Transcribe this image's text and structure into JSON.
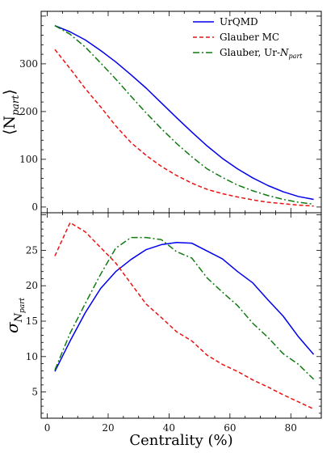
{
  "colors": {
    "urqmd": "#0000ee",
    "glauber": "#ee1111",
    "glauber_ur": "#117a11",
    "axis": "#000000"
  },
  "chart_data": [
    {
      "type": "line",
      "title": "",
      "xlabel": "",
      "ylabel": "⟨N_part⟩",
      "xlim": [
        -2,
        90
      ],
      "ylim": [
        -12,
        410
      ],
      "grid": false,
      "legend": "top-right",
      "yticks": [
        0,
        100,
        200,
        300
      ],
      "series": [
        {
          "name": "UrQMD",
          "style": "solid",
          "x": [
            2.5,
            7.5,
            12.5,
            17.5,
            22.5,
            27.5,
            32.5,
            37.5,
            42.5,
            47.5,
            52.5,
            57.5,
            62.5,
            67.5,
            72.5,
            77.5,
            82.5,
            87.5
          ],
          "y": [
            380,
            367,
            350,
            328,
            304,
            277,
            249,
            218,
            187,
            157,
            128,
            102,
            80,
            61,
            45,
            32,
            22,
            16
          ]
        },
        {
          "name": "Glauber MC",
          "style": "dashed",
          "x": [
            2.5,
            7.5,
            12.5,
            17.5,
            22.5,
            27.5,
            32.5,
            37.5,
            42.5,
            47.5,
            52.5,
            57.5,
            62.5,
            67.5,
            72.5,
            77.5,
            82.5,
            87.5
          ],
          "y": [
            330,
            290,
            248,
            210,
            170,
            135,
            108,
            85,
            66,
            50,
            37,
            28,
            21,
            15,
            10,
            7,
            4,
            2
          ]
        },
        {
          "name": "Glauber, Ur-N_part",
          "style": "dashdot",
          "x": [
            2.5,
            7.5,
            12.5,
            17.5,
            22.5,
            27.5,
            32.5,
            37.5,
            42.5,
            47.5,
            52.5,
            57.5,
            62.5,
            67.5,
            72.5,
            77.5,
            82.5,
            87.5
          ],
          "y": [
            380,
            362,
            335,
            302,
            268,
            232,
            197,
            164,
            133,
            105,
            80,
            62,
            46,
            34,
            24,
            16,
            10,
            6
          ]
        }
      ]
    },
    {
      "type": "line",
      "title": "",
      "xlabel": "Centrality (%)",
      "ylabel": "σ_N_part",
      "xlim": [
        -2,
        90
      ],
      "ylim": [
        1.3,
        30.3
      ],
      "grid": false,
      "xticks": [
        0,
        20,
        40,
        60,
        80
      ],
      "yticks": [
        5,
        10,
        15,
        20,
        25
      ],
      "series": [
        {
          "name": "UrQMD",
          "style": "solid",
          "x": [
            2.5,
            7.5,
            12.5,
            17.5,
            22.5,
            27.5,
            32.5,
            37.5,
            42.5,
            47.5,
            52.5,
            57.5,
            62.5,
            67.5,
            72.5,
            77.5,
            82.5,
            87.5
          ],
          "y": [
            7.9,
            12.2,
            16.2,
            19.6,
            22.0,
            23.7,
            25.1,
            25.8,
            26.1,
            26.0,
            24.9,
            23.8,
            22.0,
            20.4,
            18.0,
            15.7,
            12.8,
            10.3
          ]
        },
        {
          "name": "Glauber MC",
          "style": "dashed",
          "x": [
            2.5,
            7.5,
            12.5,
            17.5,
            22.5,
            27.5,
            32.5,
            37.5,
            42.5,
            47.5,
            52.5,
            57.5,
            62.5,
            67.5,
            72.5,
            77.5,
            82.5,
            87.5
          ],
          "y": [
            24.2,
            28.9,
            27.6,
            25.4,
            23.2,
            20.3,
            17.4,
            15.5,
            13.5,
            12.2,
            10.2,
            8.9,
            7.9,
            6.7,
            5.7,
            4.6,
            3.6,
            2.6
          ]
        },
        {
          "name": "Glauber, Ur-N_part",
          "style": "dashdot",
          "x": [
            2.5,
            7.5,
            12.5,
            17.5,
            22.5,
            27.5,
            32.5,
            37.5,
            42.5,
            47.5,
            52.5,
            57.5,
            62.5,
            67.5,
            72.5,
            77.5,
            82.5,
            87.5
          ],
          "y": [
            8.1,
            13.3,
            17.5,
            21.6,
            25.3,
            26.8,
            26.8,
            26.5,
            24.8,
            23.9,
            21.1,
            19.1,
            17.2,
            14.7,
            12.7,
            10.4,
            8.9,
            6.8
          ]
        }
      ]
    }
  ]
}
